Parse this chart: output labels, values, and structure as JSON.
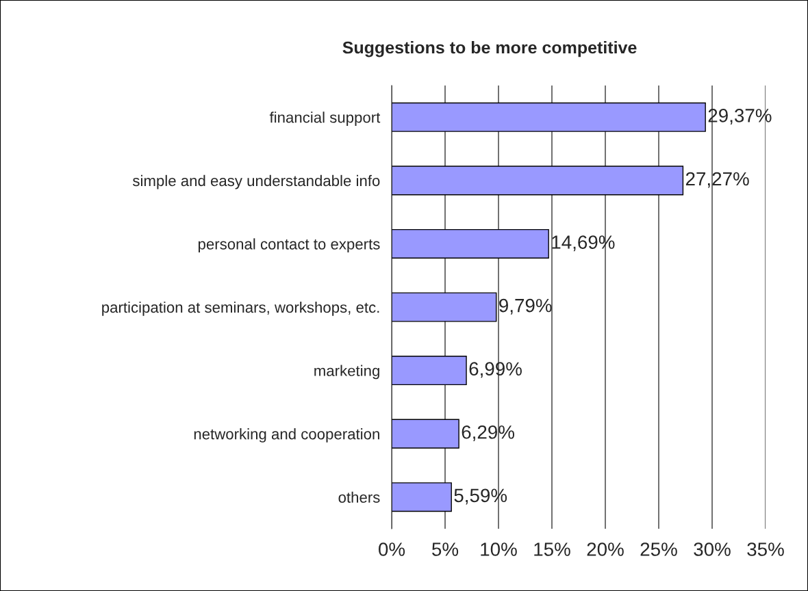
{
  "chart_data": {
    "type": "bar",
    "orientation": "horizontal",
    "title": "Suggestions to be more competitive",
    "categories": [
      "financial support",
      "simple and easy understandable info",
      "personal contact to experts",
      "participation at seminars, workshops, etc.",
      "marketing",
      "networking and cooperation",
      "others"
    ],
    "values": [
      29.37,
      27.27,
      14.69,
      9.79,
      6.99,
      6.29,
      5.59
    ],
    "value_labels": [
      "29,37%",
      "27,27%",
      "14,69%",
      "9,79%",
      "6,99%",
      "6,29%",
      "5,59%"
    ],
    "color": "#9999ff",
    "xlim": [
      0,
      35
    ],
    "xticks": [
      {
        "value": 0,
        "label": "0%"
      },
      {
        "value": 5,
        "label": "5%"
      },
      {
        "value": 10,
        "label": "10%"
      },
      {
        "value": 15,
        "label": "15%"
      },
      {
        "value": 20,
        "label": "20%"
      },
      {
        "value": 25,
        "label": "25%"
      },
      {
        "value": 30,
        "label": "30%"
      },
      {
        "value": 35,
        "label": "35%"
      }
    ],
    "grid": "x",
    "legend": false
  }
}
